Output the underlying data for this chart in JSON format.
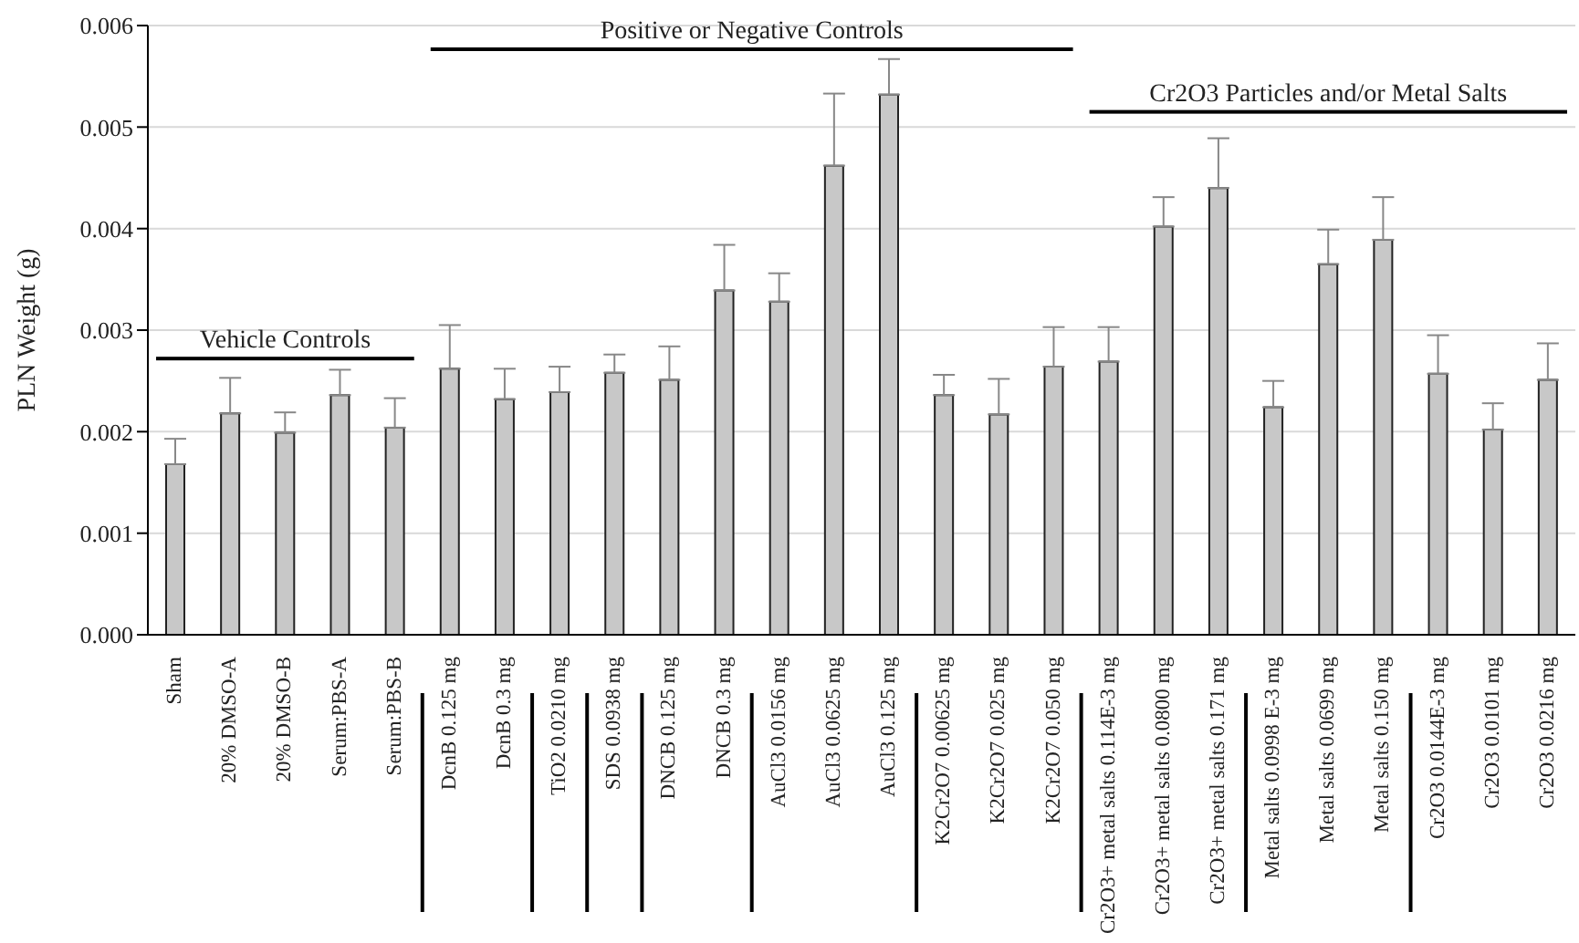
{
  "chart_data": {
    "type": "bar",
    "ylabel": "PLN Weight (g)",
    "categories": [
      "Sham",
      "20% DMSO-A",
      "20% DMSO-B",
      "Serum:PBS-A",
      "Serum:PBS-B",
      "DcnB 0.125 mg",
      "DcnB 0.3 mg",
      "TiO2 0.0210 mg",
      "SDS 0.0938 mg",
      "DNCB 0.125 mg",
      "DNCB 0.3 mg",
      "AuCl3 0.0156 mg",
      "AuCl3 0.0625 mg",
      "AuCl3 0.125 mg",
      "K2Cr2O7 0.00625 mg",
      "K2Cr2O7 0.025 mg",
      "K2Cr2O7 0.050 mg",
      "Cr2O3+ metal salts 0.114E-3 mg",
      "Cr2O3+ metal salts 0.0800 mg",
      "Cr2O3+ metal salts 0.171 mg",
      "Metal salts 0.0998 E-3 mg",
      "Metal salts 0.0699 mg",
      "Metal salts 0.150 mg",
      "Cr2O3 0.0144E-3 mg",
      "Cr2O3 0.0101 mg",
      "Cr2O3 0.0216 mg"
    ],
    "values": [
      0.00168,
      0.00218,
      0.00199,
      0.00236,
      0.00204,
      0.00262,
      0.00232,
      0.00239,
      0.00258,
      0.00251,
      0.00339,
      0.00328,
      0.00462,
      0.00532,
      0.00236,
      0.00217,
      0.00264,
      0.00269,
      0.00402,
      0.0044,
      0.00224,
      0.00365,
      0.00389,
      0.00257,
      0.00202,
      0.00251
    ],
    "errors": [
      [
        0.00168,
        0.00193
      ],
      [
        0.00218,
        0.00253
      ],
      [
        0.00199,
        0.00219
      ],
      [
        0.00236,
        0.00261
      ],
      [
        0.00204,
        0.00233
      ],
      [
        0.00262,
        0.00305
      ],
      [
        0.00232,
        0.00262
      ],
      [
        0.00239,
        0.00264
      ],
      [
        0.00258,
        0.00276
      ],
      [
        0.00251,
        0.00284
      ],
      [
        0.00339,
        0.00384
      ],
      [
        0.00328,
        0.00356
      ],
      [
        0.00462,
        0.00533
      ],
      [
        0.00532,
        0.00567
      ],
      [
        0.00236,
        0.00256
      ],
      [
        0.00217,
        0.00252
      ],
      [
        0.00264,
        0.00303
      ],
      [
        0.00269,
        0.00303
      ],
      [
        0.00402,
        0.00431
      ],
      [
        0.0044,
        0.00489
      ],
      [
        0.00224,
        0.0025
      ],
      [
        0.00365,
        0.00399
      ],
      [
        0.00389,
        0.00431
      ],
      [
        0.00257,
        0.00295
      ],
      [
        0.00202,
        0.00228
      ],
      [
        0.00251,
        0.00287
      ]
    ],
    "color": "#c8c8c8",
    "ylim": [
      0,
      0.006
    ],
    "yticks": [
      {
        "value": 0,
        "label": "0.000"
      },
      {
        "value": 0.001,
        "label": "0.001"
      },
      {
        "value": 0.002,
        "label": "0.002"
      },
      {
        "value": 0.003,
        "label": "0.003"
      },
      {
        "value": 0.004,
        "label": "0.004"
      },
      {
        "value": 0.005,
        "label": "0.005"
      },
      {
        "value": 0.006,
        "label": "0.006"
      }
    ],
    "grid": "y",
    "annotations": [
      "Vehicle Controls",
      "Positive or Negative Controls",
      "Cr2O3 Particles and/or Metal Salts"
    ]
  }
}
